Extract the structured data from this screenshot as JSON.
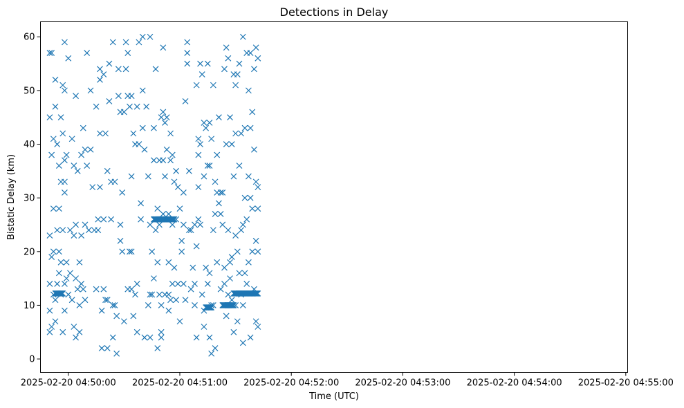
{
  "chart_data": {
    "type": "scatter",
    "title": "Detections in Delay",
    "xlabel": "Time (UTC)",
    "ylabel": "Bistatic Delay (km)",
    "marker": "x",
    "color": "#1f77b4",
    "grid": false,
    "xlim": [
      "2025-02-20 04:49:45",
      "2025-02-20 04:55:01"
    ],
    "ylim": [
      -2.5,
      62.8
    ],
    "x_ticks": [
      "2025-02-20 04:50:00",
      "2025-02-20 04:51:00",
      "2025-02-20 04:52:00",
      "2025-02-20 04:53:00",
      "2025-02-20 04:54:00",
      "2025-02-20 04:55:00"
    ],
    "y_ticks": [
      0,
      10,
      20,
      30,
      40,
      50,
      60
    ],
    "start": "2025-02-20 04:49:50",
    "step_seconds": 1,
    "series": [
      {
        "name": "",
        "points": [
          [
            0,
            57
          ],
          [
            0,
            23
          ],
          [
            0,
            45
          ],
          [
            0,
            14
          ],
          [
            0,
            9
          ],
          [
            0,
            5
          ],
          [
            1,
            57
          ],
          [
            1,
            19
          ],
          [
            1,
            6
          ],
          [
            1,
            38
          ],
          [
            2,
            28
          ],
          [
            2,
            12
          ],
          [
            2,
            20
          ],
          [
            2,
            41
          ],
          [
            3,
            52
          ],
          [
            3,
            47
          ],
          [
            3,
            11
          ],
          [
            3,
            7
          ],
          [
            4,
            24
          ],
          [
            4,
            40
          ],
          [
            4,
            14
          ],
          [
            5,
            20
          ],
          [
            5,
            36
          ],
          [
            5,
            28
          ],
          [
            5,
            16
          ],
          [
            6,
            33
          ],
          [
            6,
            18
          ],
          [
            6,
            45
          ],
          [
            6,
            12
          ],
          [
            7,
            51
          ],
          [
            7,
            24
          ],
          [
            7,
            5
          ],
          [
            7,
            42
          ],
          [
            8,
            59
          ],
          [
            8,
            50
          ],
          [
            8,
            37
          ],
          [
            8,
            33
          ],
          [
            8,
            31
          ],
          [
            8,
            14
          ],
          [
            8,
            9
          ],
          [
            9,
            38
          ],
          [
            9,
            15
          ],
          [
            9,
            18
          ],
          [
            10,
            56
          ],
          [
            10,
            12
          ],
          [
            11,
            24
          ],
          [
            11,
            16
          ],
          [
            12,
            41
          ],
          [
            12,
            11
          ],
          [
            13,
            36
          ],
          [
            13,
            23
          ],
          [
            13,
            6
          ],
          [
            14,
            49
          ],
          [
            14,
            25
          ],
          [
            14,
            15
          ],
          [
            14,
            4
          ],
          [
            15,
            35
          ],
          [
            15,
            13
          ],
          [
            16,
            18
          ],
          [
            16,
            10
          ],
          [
            16,
            5
          ],
          [
            17,
            38
          ],
          [
            17,
            14
          ],
          [
            17,
            23
          ],
          [
            18,
            43
          ],
          [
            18,
            13
          ],
          [
            19,
            39
          ],
          [
            19,
            25
          ],
          [
            19,
            11
          ],
          [
            20,
            57
          ],
          [
            20,
            36
          ],
          [
            21,
            24
          ],
          [
            22,
            50
          ],
          [
            22,
            39
          ],
          [
            23,
            32
          ],
          [
            24,
            24
          ],
          [
            25,
            47
          ],
          [
            25,
            13
          ],
          [
            26,
            26
          ],
          [
            26,
            24
          ],
          [
            27,
            54
          ],
          [
            27,
            52
          ],
          [
            27,
            42
          ],
          [
            27,
            32
          ],
          [
            28,
            2
          ],
          [
            28,
            9
          ],
          [
            29,
            53
          ],
          [
            29,
            26
          ],
          [
            29,
            13
          ],
          [
            30,
            42
          ],
          [
            30,
            11
          ],
          [
            31,
            35
          ],
          [
            31,
            11
          ],
          [
            31,
            2
          ],
          [
            32,
            55
          ],
          [
            32,
            48
          ],
          [
            33,
            33
          ],
          [
            33,
            26
          ],
          [
            34,
            59
          ],
          [
            34,
            10
          ],
          [
            34,
            4
          ],
          [
            35,
            33
          ],
          [
            35,
            10
          ],
          [
            36,
            8
          ],
          [
            36,
            1
          ],
          [
            37,
            54
          ],
          [
            37,
            49
          ],
          [
            38,
            46
          ],
          [
            38,
            25
          ],
          [
            38,
            22
          ],
          [
            39,
            31
          ],
          [
            39,
            20
          ],
          [
            40,
            46
          ],
          [
            40,
            7
          ],
          [
            41,
            59
          ],
          [
            41,
            54
          ],
          [
            42,
            49
          ],
          [
            42,
            57
          ],
          [
            42,
            13
          ],
          [
            43,
            47
          ],
          [
            43,
            20
          ],
          [
            44,
            49
          ],
          [
            44,
            20
          ],
          [
            44,
            13
          ],
          [
            44,
            34
          ],
          [
            45,
            42
          ],
          [
            45,
            8
          ],
          [
            46,
            40
          ],
          [
            46,
            12
          ],
          [
            47,
            47
          ],
          [
            47,
            14
          ],
          [
            47,
            5
          ],
          [
            48,
            59
          ],
          [
            48,
            40
          ],
          [
            49,
            29
          ],
          [
            49,
            26
          ],
          [
            50,
            50
          ],
          [
            50,
            43
          ],
          [
            50,
            60
          ],
          [
            51,
            39
          ],
          [
            51,
            4
          ],
          [
            52,
            47
          ],
          [
            53,
            34
          ],
          [
            53,
            10
          ],
          [
            54,
            60
          ],
          [
            54,
            25
          ],
          [
            54,
            12
          ],
          [
            54,
            4
          ],
          [
            55,
            12
          ],
          [
            55,
            20
          ],
          [
            56,
            43
          ],
          [
            56,
            37
          ],
          [
            56,
            15
          ],
          [
            57,
            54
          ],
          [
            57,
            26
          ],
          [
            57,
            24
          ],
          [
            58,
            28
          ],
          [
            58,
            2
          ],
          [
            58,
            18
          ],
          [
            59,
            25
          ],
          [
            59,
            12
          ],
          [
            59,
            37
          ],
          [
            60,
            4
          ],
          [
            60,
            45
          ],
          [
            60,
            10
          ],
          [
            60,
            5
          ],
          [
            61,
            37
          ],
          [
            61,
            58
          ],
          [
            61,
            27
          ],
          [
            61,
            46
          ],
          [
            62,
            12
          ],
          [
            62,
            44
          ],
          [
            62,
            34
          ],
          [
            63,
            26
          ],
          [
            63,
            45
          ],
          [
            63,
            39
          ],
          [
            64,
            18
          ],
          [
            64,
            9
          ],
          [
            64,
            27
          ],
          [
            64,
            12
          ],
          [
            65,
            42
          ],
          [
            65,
            37
          ],
          [
            65,
            11
          ],
          [
            66,
            25
          ],
          [
            66,
            14
          ],
          [
            66,
            38
          ],
          [
            67,
            33
          ],
          [
            67,
            17
          ],
          [
            68,
            26
          ],
          [
            68,
            35
          ],
          [
            68,
            11
          ],
          [
            69,
            32
          ],
          [
            69,
            14
          ],
          [
            70,
            28
          ],
          [
            70,
            7
          ],
          [
            71,
            20
          ],
          [
            71,
            22
          ],
          [
            72,
            25
          ],
          [
            72,
            31
          ],
          [
            72,
            14
          ],
          [
            73,
            48
          ],
          [
            73,
            11
          ],
          [
            74,
            59
          ],
          [
            74,
            57
          ],
          [
            74,
            55
          ],
          [
            75,
            35
          ],
          [
            75,
            24
          ],
          [
            76,
            24
          ],
          [
            76,
            13
          ],
          [
            77,
            17
          ],
          [
            78,
            25
          ],
          [
            78,
            14
          ],
          [
            78,
            10
          ],
          [
            79,
            51
          ],
          [
            79,
            21
          ],
          [
            79,
            4
          ],
          [
            80,
            41
          ],
          [
            80,
            38
          ],
          [
            80,
            26
          ],
          [
            80,
            32
          ],
          [
            81,
            55
          ],
          [
            81,
            40
          ],
          [
            81,
            25
          ],
          [
            82,
            53
          ],
          [
            82,
            12
          ],
          [
            83,
            44
          ],
          [
            83,
            34
          ],
          [
            83,
            9
          ],
          [
            83,
            6
          ],
          [
            84,
            43
          ],
          [
            84,
            17
          ],
          [
            85,
            55
          ],
          [
            85,
            36
          ],
          [
            85,
            14
          ],
          [
            86,
            44
          ],
          [
            86,
            36
          ],
          [
            86,
            16
          ],
          [
            86,
            4
          ],
          [
            87,
            41
          ],
          [
            87,
            10
          ],
          [
            87,
            1
          ],
          [
            88,
            51
          ],
          [
            88,
            24
          ],
          [
            88,
            10
          ],
          [
            89,
            33
          ],
          [
            89,
            27
          ],
          [
            89,
            2
          ],
          [
            90,
            31
          ],
          [
            90,
            38
          ],
          [
            90,
            18
          ],
          [
            91,
            45
          ],
          [
            91,
            29
          ],
          [
            92,
            31
          ],
          [
            92,
            27
          ],
          [
            92,
            13
          ],
          [
            93,
            25
          ],
          [
            93,
            31
          ],
          [
            94,
            54
          ],
          [
            94,
            17
          ],
          [
            94,
            14
          ],
          [
            95,
            58
          ],
          [
            95,
            40
          ],
          [
            95,
            8
          ],
          [
            96,
            56
          ],
          [
            96,
            24
          ],
          [
            96,
            12
          ],
          [
            97,
            45
          ],
          [
            97,
            18
          ],
          [
            97,
            15
          ],
          [
            98,
            40
          ],
          [
            98,
            19
          ],
          [
            98,
            11
          ],
          [
            99,
            53
          ],
          [
            99,
            5
          ],
          [
            99,
            34
          ],
          [
            100,
            51
          ],
          [
            100,
            42
          ],
          [
            100,
            23
          ],
          [
            100,
            10
          ],
          [
            101,
            53
          ],
          [
            101,
            20
          ],
          [
            101,
            7
          ],
          [
            102,
            55
          ],
          [
            102,
            36
          ],
          [
            102,
            16
          ],
          [
            103,
            42
          ],
          [
            103,
            24
          ],
          [
            103,
            12
          ],
          [
            104,
            60
          ],
          [
            104,
            25
          ],
          [
            104,
            10
          ],
          [
            104,
            3
          ],
          [
            105,
            43
          ],
          [
            105,
            30
          ],
          [
            105,
            16
          ],
          [
            106,
            57
          ],
          [
            106,
            26
          ],
          [
            106,
            14
          ],
          [
            107,
            50
          ],
          [
            107,
            34
          ],
          [
            107,
            18
          ],
          [
            108,
            57
          ],
          [
            108,
            43
          ],
          [
            108,
            30
          ],
          [
            108,
            4
          ],
          [
            109,
            46
          ],
          [
            109,
            28
          ],
          [
            109,
            20
          ],
          [
            110,
            54
          ],
          [
            110,
            39
          ],
          [
            110,
            13
          ],
          [
            111,
            58
          ],
          [
            111,
            33
          ],
          [
            111,
            22
          ],
          [
            111,
            7
          ],
          [
            112,
            56
          ],
          [
            112,
            32
          ],
          [
            112,
            28
          ],
          [
            112,
            20
          ],
          [
            112,
            6
          ]
        ],
        "clusters": [
          {
            "x_start": 3,
            "x_end": 7,
            "y": 12.2
          },
          {
            "x_start": 56,
            "x_end": 67,
            "y": 26.0
          },
          {
            "x_start": 84,
            "x_end": 87,
            "y": 9.6
          },
          {
            "x_start": 93,
            "x_end": 99,
            "y": 10.0
          },
          {
            "x_start": 99,
            "x_end": 112,
            "y": 12.2
          }
        ]
      }
    ]
  }
}
